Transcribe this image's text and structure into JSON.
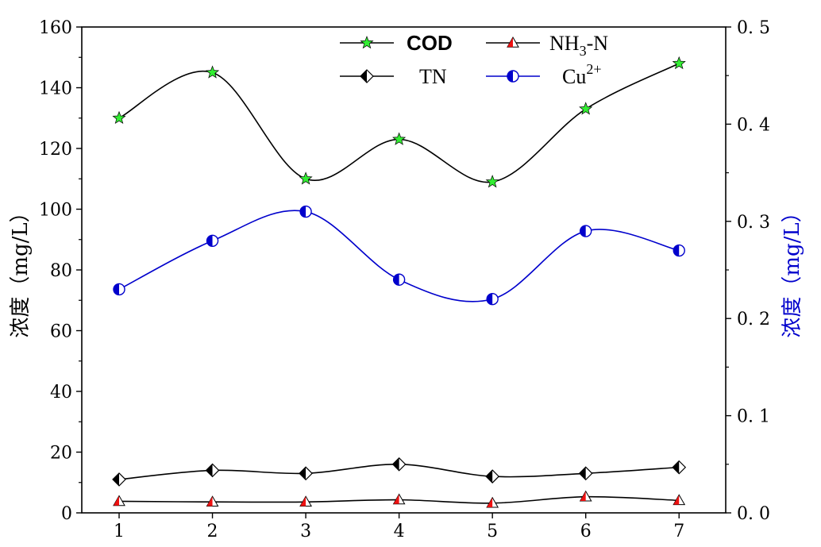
{
  "chart_data": {
    "type": "line",
    "x": [
      1,
      2,
      3,
      4,
      5,
      6,
      7
    ],
    "xlim": [
      0.6,
      7.5
    ],
    "xticks": [
      "1",
      "2",
      "3",
      "4",
      "5",
      "6",
      "7"
    ],
    "ylabel_left": "浓度（mg/L）",
    "ylim_left": [
      0,
      160
    ],
    "yticks_left": [
      "0",
      "20",
      "40",
      "60",
      "80",
      "100",
      "120",
      "140",
      "160"
    ],
    "ylabel_right": "浓度（mg/L）",
    "ylim_right": [
      0,
      0.5
    ],
    "yticks_right": [
      "0. 0",
      "0. 1",
      "0. 2",
      "0. 3",
      "0. 4",
      "0. 5"
    ],
    "grid": false,
    "legend_position": "top-center",
    "series": [
      {
        "name": "COD",
        "axis": "left",
        "marker": "star",
        "color": "#000000",
        "marker_color": "#33ee33",
        "values": [
          130,
          145,
          110,
          123,
          109,
          133,
          148
        ]
      },
      {
        "name": "NH3-N",
        "axis": "left",
        "marker": "half-triangle",
        "color": "#000000",
        "marker_color": "#ee1111",
        "values": [
          3.8,
          3.6,
          3.6,
          4.3,
          3.2,
          5.3,
          4.1
        ]
      },
      {
        "name": "TN",
        "axis": "left",
        "marker": "half-diamond",
        "color": "#000000",
        "marker_color": "#000000",
        "values": [
          11,
          14,
          13,
          16,
          12,
          13,
          15
        ]
      },
      {
        "name": "Cu2+",
        "axis": "right",
        "marker": "half-circle",
        "color": "#0000cc",
        "marker_color": "#0000cc",
        "values": [
          0.23,
          0.28,
          0.31,
          0.24,
          0.22,
          0.29,
          0.27
        ]
      }
    ],
    "colors": {
      "axis": "#000000",
      "right_axis_title": "#0000cc"
    }
  }
}
